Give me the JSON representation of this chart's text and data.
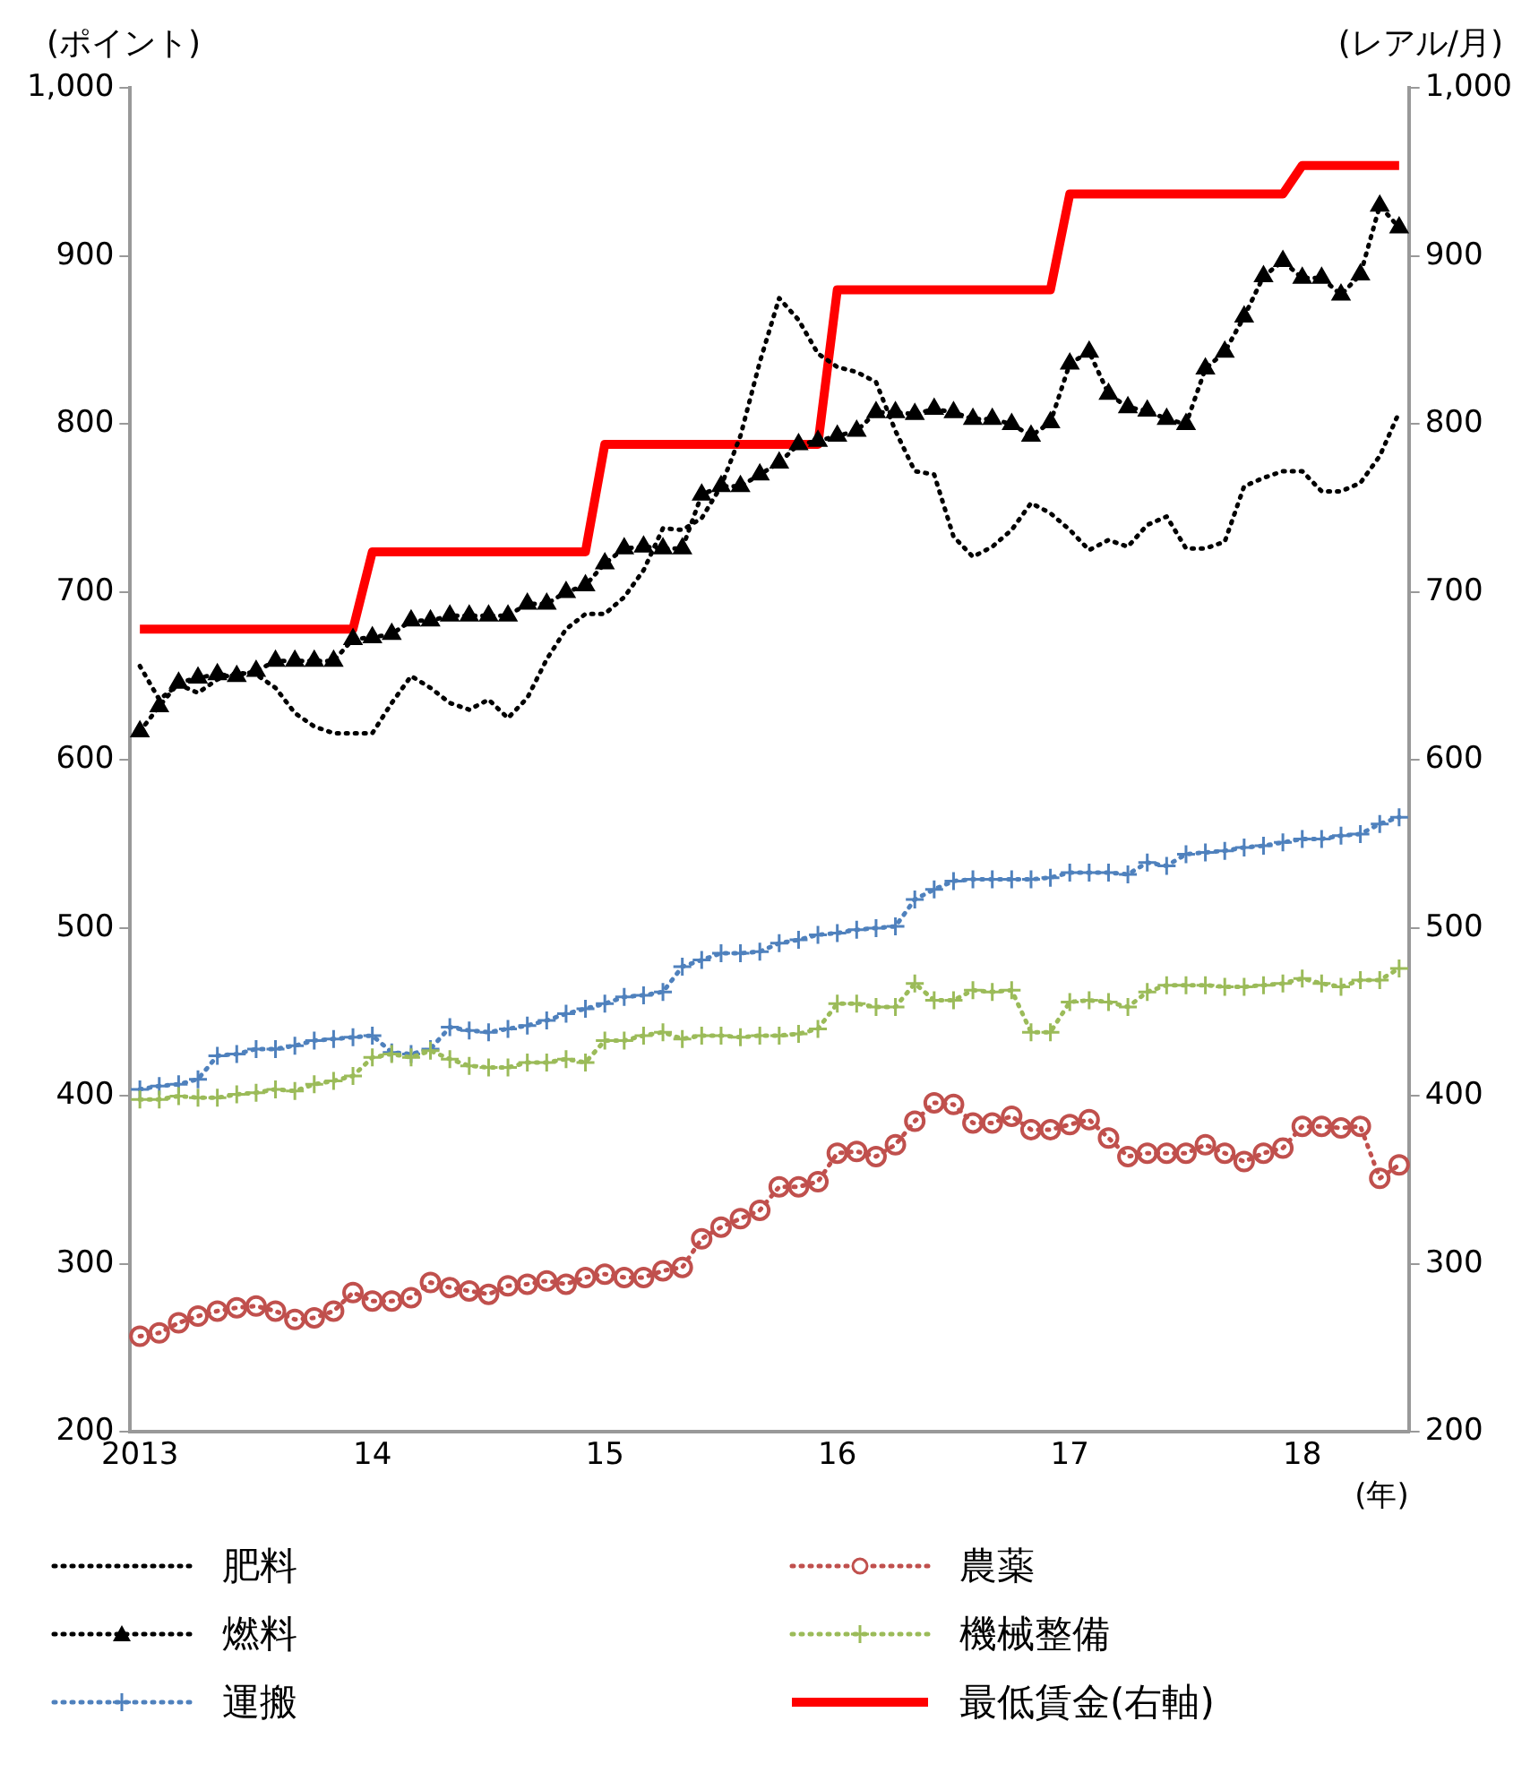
{
  "chart_data": {
    "type": "line",
    "ylabel": "(ポイント)",
    "y2label": "(レアル/月)",
    "xlabel": "(年)",
    "categories": [
      "2013",
      null,
      null,
      null,
      null,
      null,
      null,
      null,
      null,
      null,
      null,
      null,
      "14",
      null,
      null,
      null,
      null,
      null,
      null,
      null,
      null,
      null,
      null,
      null,
      "15",
      null,
      null,
      null,
      null,
      null,
      null,
      null,
      null,
      null,
      null,
      null,
      "16",
      null,
      null,
      null,
      null,
      null,
      null,
      null,
      null,
      null,
      null,
      null,
      "17",
      null,
      null,
      null,
      null,
      null,
      null,
      null,
      null,
      null,
      null,
      null,
      "18",
      null,
      null,
      null,
      null,
      null
    ],
    "ylim": [
      200,
      1000
    ],
    "yticks": [
      200,
      300,
      400,
      500,
      600,
      700,
      800,
      900,
      {
        "value": 1000,
        "label": "1,000"
      }
    ],
    "y2lim": [
      200,
      1000
    ],
    "y2ticks": [
      200,
      300,
      400,
      500,
      600,
      700,
      800,
      900,
      {
        "value": 1000,
        "label": "1,000"
      }
    ],
    "grid": false,
    "legend": "bottom",
    "series": [
      {
        "name": "肥料",
        "color": "#000000",
        "marker": "none",
        "line_style": "dotted",
        "values": [
          656,
          636,
          645,
          640,
          648,
          652,
          651,
          643,
          628,
          620,
          616,
          616,
          616,
          634,
          650,
          643,
          634,
          630,
          636,
          625,
          637,
          660,
          678,
          687,
          687,
          697,
          713,
          738,
          737,
          744,
          763,
          793,
          837,
          875,
          862,
          842,
          834,
          831,
          825,
          796,
          772,
          770,
          733,
          721,
          727,
          737,
          753,
          747,
          737,
          725,
          731,
          727,
          740,
          745,
          726,
          726,
          730,
          763,
          768,
          772,
          772,
          760,
          760,
          765,
          781,
          807
        ]
      },
      {
        "name": "農薬",
        "color": "#c0504d",
        "marker": "circle",
        "line_style": "dotted",
        "values": [
          257,
          259,
          265,
          269,
          272,
          274,
          275,
          272,
          267,
          268,
          272,
          283,
          278,
          278,
          280,
          289,
          286,
          284,
          282,
          287,
          288,
          290,
          288,
          292,
          294,
          292,
          292,
          296,
          298,
          315,
          322,
          327,
          332,
          346,
          346,
          349,
          366,
          367,
          364,
          371,
          385,
          396,
          395,
          384,
          384,
          388,
          380,
          380,
          383,
          386,
          375,
          364,
          366,
          366,
          366,
          371,
          366,
          361,
          366,
          369,
          382,
          382,
          381,
          382,
          351,
          359
        ]
      },
      {
        "name": "燃料",
        "color": "#000000",
        "marker": "triangle",
        "line_style": "dotted",
        "values": [
          617,
          632,
          646,
          649,
          651,
          650,
          653,
          659,
          659,
          659,
          659,
          672,
          673,
          675,
          683,
          683,
          686,
          686,
          686,
          686,
          693,
          693,
          700,
          704,
          717,
          726,
          727,
          726,
          726,
          758,
          763,
          763,
          770,
          777,
          788,
          790,
          793,
          796,
          807,
          807,
          806,
          809,
          807,
          803,
          803,
          800,
          793,
          801,
          836,
          843,
          818,
          810,
          808,
          803,
          800,
          833,
          843,
          864,
          888,
          897,
          887,
          887,
          877,
          889,
          930,
          917
        ]
      },
      {
        "name": "機械整備",
        "color": "#9bbb59",
        "marker": "cross",
        "line_style": "dotted",
        "values": [
          398,
          398,
          400,
          399,
          399,
          401,
          402,
          404,
          403,
          407,
          409,
          412,
          423,
          425,
          423,
          427,
          422,
          418,
          417,
          417,
          420,
          420,
          422,
          420,
          433,
          433,
          436,
          438,
          434,
          436,
          436,
          435,
          436,
          436,
          437,
          440,
          455,
          455,
          453,
          453,
          467,
          457,
          457,
          463,
          462,
          463,
          438,
          438,
          456,
          457,
          456,
          453,
          462,
          466,
          466,
          466,
          465,
          465,
          466,
          467,
          470,
          467,
          465,
          469,
          469,
          476
        ]
      },
      {
        "name": "運搬",
        "color": "#4f81bd",
        "marker": "cross",
        "line_style": "dotted",
        "values": [
          404,
          406,
          407,
          410,
          424,
          425,
          428,
          428,
          430,
          433,
          434,
          435,
          436,
          426,
          425,
          428,
          441,
          439,
          438,
          440,
          442,
          445,
          449,
          452,
          455,
          459,
          460,
          462,
          477,
          481,
          485,
          485,
          486,
          491,
          493,
          496,
          497,
          499,
          500,
          501,
          517,
          523,
          528,
          529,
          529,
          529,
          529,
          530,
          533,
          533,
          533,
          532,
          539,
          537,
          544,
          545,
          546,
          548,
          549,
          551,
          553,
          553,
          555,
          556,
          562,
          566
        ]
      },
      {
        "name": "最低賃金(右軸)",
        "color": "#ff0000",
        "marker": "none",
        "line_style": "solid",
        "axis": "y2",
        "values": [
          678,
          678,
          678,
          678,
          678,
          678,
          678,
          678,
          678,
          678,
          678,
          678,
          724,
          724,
          724,
          724,
          724,
          724,
          724,
          724,
          724,
          724,
          724,
          724,
          788,
          788,
          788,
          788,
          788,
          788,
          788,
          788,
          788,
          788,
          788,
          788,
          880,
          880,
          880,
          880,
          880,
          880,
          880,
          880,
          880,
          880,
          880,
          880,
          937,
          937,
          937,
          937,
          937,
          937,
          937,
          937,
          937,
          937,
          937,
          937,
          954,
          954,
          954,
          954,
          954,
          954
        ]
      }
    ]
  }
}
